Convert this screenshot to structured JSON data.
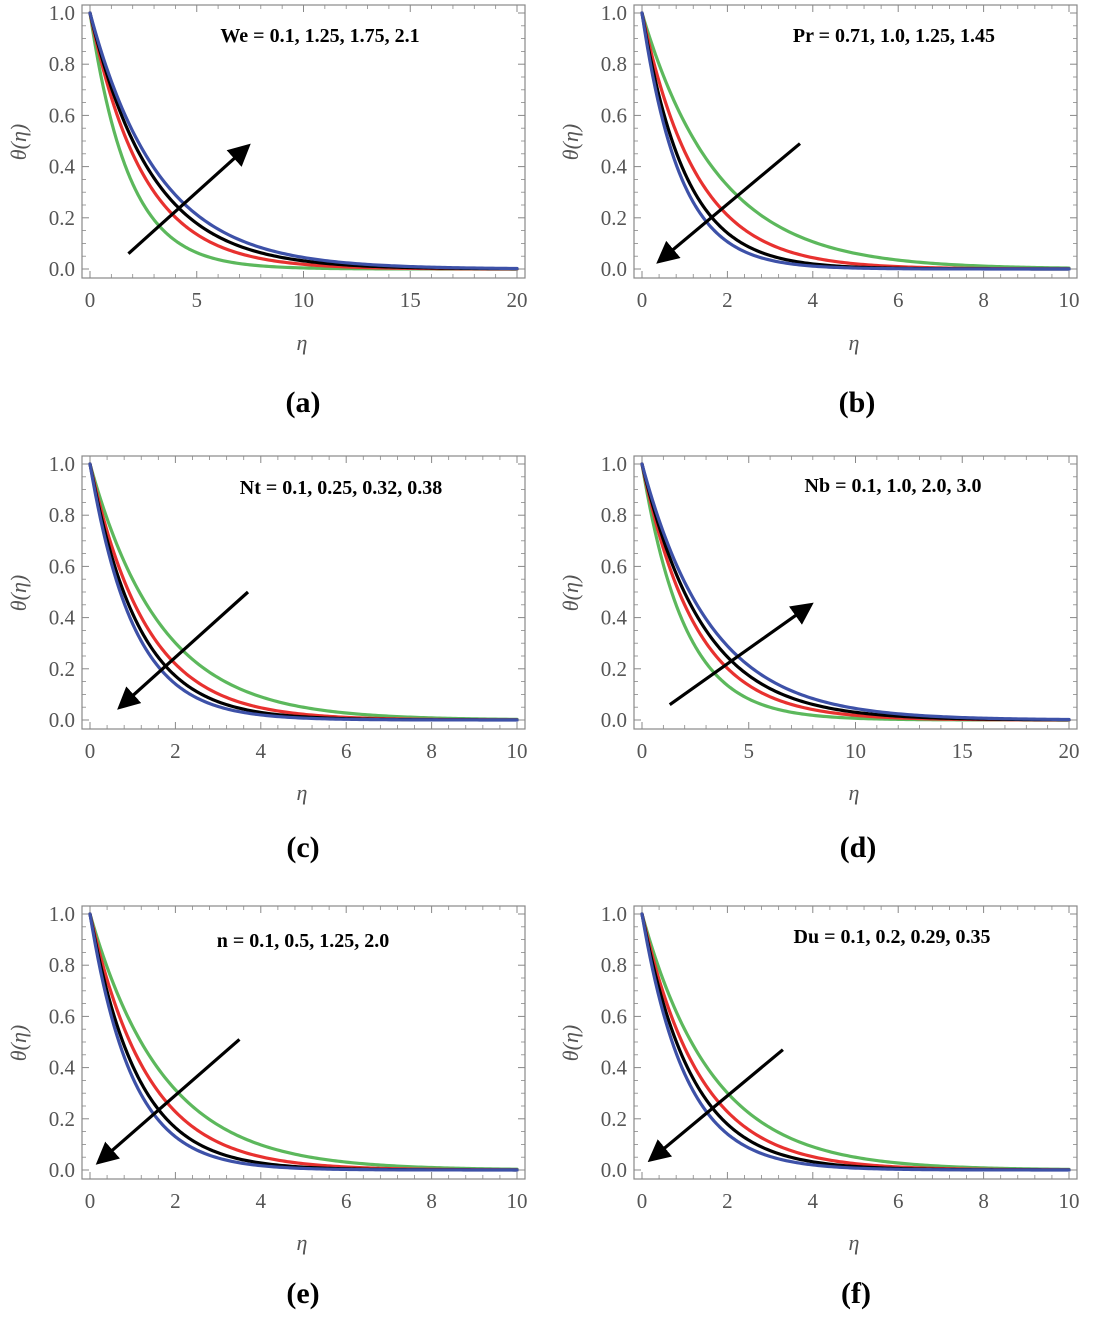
{
  "figure": {
    "colors": {
      "green": "#5cb85c",
      "red": "#e8312f",
      "black": "#000000",
      "blue": "#3d51a8",
      "frame": "#888888"
    },
    "series_order": [
      "green",
      "red",
      "black",
      "blue"
    ]
  },
  "chart_data": [
    {
      "type": "line",
      "panel_label": "(a)",
      "title": "",
      "annotation": "We = 0.1, 1.25, 1.75, 2.1",
      "parameter": "We",
      "parameter_values": [
        0.1,
        1.25,
        1.75,
        2.1
      ],
      "xlabel": "η",
      "ylabel": "θ(η)",
      "xlim": [
        0,
        20
      ],
      "ylim": [
        0,
        1
      ],
      "xticks": [
        0,
        5,
        10,
        15,
        20
      ],
      "xtick_labels": [
        "0",
        "5",
        "10",
        "15",
        "20"
      ],
      "yticks": [
        0,
        0.2,
        0.4,
        0.6,
        0.8,
        1.0
      ],
      "ytick_labels": [
        "0.0",
        "0.2",
        "0.4",
        "0.6",
        "0.8",
        "1.0"
      ],
      "series": [
        {
          "name": "We = 0.1",
          "color": "green",
          "decay": 0.55
        },
        {
          "name": "We = 1.25",
          "color": "red",
          "decay": 0.4
        },
        {
          "name": "We = 1.75",
          "color": "black",
          "decay": 0.345
        },
        {
          "name": "We = 2.1",
          "color": "blue",
          "decay": 0.31
        }
      ],
      "arrow": {
        "from": [
          1.8,
          0.06
        ],
        "to": [
          7.4,
          0.48
        ],
        "direction": "increasing"
      }
    },
    {
      "type": "line",
      "panel_label": "(b)",
      "title": "",
      "annotation": "Pr = 0.71, 1.0, 1.25, 1.45",
      "parameter": "Pr",
      "parameter_values": [
        0.71,
        1.0,
        1.25,
        1.45
      ],
      "xlabel": "η",
      "ylabel": "θ(η)",
      "xlim": [
        0,
        10
      ],
      "ylim": [
        0,
        1
      ],
      "xticks": [
        0,
        2,
        4,
        6,
        8,
        10
      ],
      "xtick_labels": [
        "0",
        "2",
        "4",
        "6",
        "8",
        "10"
      ],
      "yticks": [
        0,
        0.2,
        0.4,
        0.6,
        0.8,
        1.0
      ],
      "ytick_labels": [
        "0.0",
        "0.2",
        "0.4",
        "0.6",
        "0.8",
        "1.0"
      ],
      "series": [
        {
          "name": "Pr = 0.71",
          "color": "green",
          "decay": 0.56
        },
        {
          "name": "Pr = 1.0",
          "color": "red",
          "decay": 0.78
        },
        {
          "name": "Pr = 1.25",
          "color": "black",
          "decay": 0.98
        },
        {
          "name": "Pr = 1.45",
          "color": "blue",
          "decay": 1.12
        }
      ],
      "arrow": {
        "from": [
          3.7,
          0.49
        ],
        "to": [
          0.4,
          0.03
        ],
        "direction": "decreasing"
      }
    },
    {
      "type": "line",
      "panel_label": "(c)",
      "title": "",
      "annotation": "Nt = 0.1, 0.25, 0.32, 0.38",
      "parameter": "Nt",
      "parameter_values": [
        0.1,
        0.25,
        0.32,
        0.38
      ],
      "xlabel": "η",
      "ylabel": "θ(η)",
      "xlim": [
        0,
        10
      ],
      "ylim": [
        0,
        1
      ],
      "xticks": [
        0,
        2,
        4,
        6,
        8,
        10
      ],
      "xtick_labels": [
        "0",
        "2",
        "4",
        "6",
        "8",
        "10"
      ],
      "yticks": [
        0,
        0.2,
        0.4,
        0.6,
        0.8,
        1.0
      ],
      "ytick_labels": [
        "0.0",
        "0.2",
        "0.4",
        "0.6",
        "0.8",
        "1.0"
      ],
      "series": [
        {
          "name": "Nt = 0.1",
          "color": "green",
          "decay": 0.6
        },
        {
          "name": "Nt = 0.25",
          "color": "red",
          "decay": 0.76
        },
        {
          "name": "Nt = 0.32",
          "color": "black",
          "decay": 0.88
        },
        {
          "name": "Nt = 0.38",
          "color": "blue",
          "decay": 0.98
        }
      ],
      "arrow": {
        "from": [
          3.7,
          0.5
        ],
        "to": [
          0.7,
          0.05
        ],
        "direction": "decreasing"
      }
    },
    {
      "type": "line",
      "panel_label": "(d)",
      "title": "",
      "annotation": "Nb = 0.1, 1.0, 2.0, 3.0",
      "parameter": "Nb",
      "parameter_values": [
        0.1,
        1.0,
        2.0,
        3.0
      ],
      "xlabel": "η",
      "ylabel": "θ(η)",
      "xlim": [
        0,
        20
      ],
      "ylim": [
        0,
        1
      ],
      "xticks": [
        0,
        5,
        10,
        15,
        20
      ],
      "xtick_labels": [
        "0",
        "5",
        "10",
        "15",
        "20"
      ],
      "yticks": [
        0,
        0.2,
        0.4,
        0.6,
        0.8,
        1.0
      ],
      "ytick_labels": [
        "0.0",
        "0.2",
        "0.4",
        "0.6",
        "0.8",
        "1.0"
      ],
      "series": [
        {
          "name": "Nb = 0.1",
          "color": "green",
          "decay": 0.5
        },
        {
          "name": "Nb = 1.0",
          "color": "red",
          "decay": 0.4
        },
        {
          "name": "Nb = 2.0",
          "color": "black",
          "decay": 0.35
        },
        {
          "name": "Nb = 3.0",
          "color": "blue",
          "decay": 0.31
        }
      ],
      "arrow": {
        "from": [
          1.3,
          0.06
        ],
        "to": [
          7.9,
          0.45
        ],
        "direction": "increasing"
      }
    },
    {
      "type": "line",
      "panel_label": "(e)",
      "title": "",
      "annotation": "n = 0.1, 0.5, 1.25, 2.0",
      "parameter": "n",
      "parameter_values": [
        0.1,
        0.5,
        1.25,
        2.0
      ],
      "xlabel": "η",
      "ylabel": "θ(η)",
      "xlim": [
        0,
        10
      ],
      "ylim": [
        0,
        1
      ],
      "xticks": [
        0,
        2,
        4,
        6,
        8,
        10
      ],
      "xtick_labels": [
        "0",
        "2",
        "4",
        "6",
        "8",
        "10"
      ],
      "yticks": [
        0,
        0.2,
        0.4,
        0.6,
        0.8,
        1.0
      ],
      "ytick_labels": [
        "0.0",
        "0.2",
        "0.4",
        "0.6",
        "0.8",
        "1.0"
      ],
      "series": [
        {
          "name": "n = 0.1",
          "color": "green",
          "decay": 0.58
        },
        {
          "name": "n = 0.5",
          "color": "red",
          "decay": 0.74
        },
        {
          "name": "n = 1.25",
          "color": "black",
          "decay": 0.9
        },
        {
          "name": "n = 2.0",
          "color": "blue",
          "decay": 1.02
        }
      ],
      "arrow": {
        "from": [
          3.5,
          0.51
        ],
        "to": [
          0.2,
          0.03
        ],
        "direction": "decreasing"
      }
    },
    {
      "type": "line",
      "panel_label": "(f)",
      "title": "",
      "annotation": "Du = 0.1, 0.2, 0.29, 0.35",
      "parameter": "Du",
      "parameter_values": [
        0.1,
        0.2,
        0.29,
        0.35
      ],
      "xlabel": "η",
      "ylabel": "θ(η)",
      "xlim": [
        0,
        10
      ],
      "ylim": [
        0,
        1
      ],
      "xticks": [
        0,
        2,
        4,
        6,
        8,
        10
      ],
      "xtick_labels": [
        "0",
        "2",
        "4",
        "6",
        "8",
        "10"
      ],
      "yticks": [
        0,
        0.2,
        0.4,
        0.6,
        0.8,
        1.0
      ],
      "ytick_labels": [
        "0.0",
        "0.2",
        "0.4",
        "0.6",
        "0.8",
        "1.0"
      ],
      "series": [
        {
          "name": "Du = 0.1",
          "color": "green",
          "decay": 0.6
        },
        {
          "name": "Du = 0.2",
          "color": "red",
          "decay": 0.74
        },
        {
          "name": "Du = 0.29",
          "color": "black",
          "decay": 0.86
        },
        {
          "name": "Du = 0.35",
          "color": "blue",
          "decay": 0.98
        }
      ],
      "arrow": {
        "from": [
          3.3,
          0.47
        ],
        "to": [
          0.2,
          0.04
        ],
        "direction": "decreasing"
      }
    }
  ]
}
